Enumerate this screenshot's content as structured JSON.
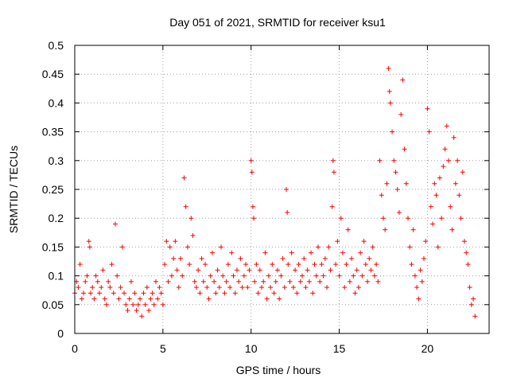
{
  "chart_data": {
    "type": "scatter",
    "title": "Day 051 of 2021, SRMTID for receiver ksu1",
    "xlabel": "GPS time / hours",
    "ylabel": "SRMTID / TECUs",
    "xlim": [
      0,
      23.5
    ],
    "ylim": [
      0,
      0.5
    ],
    "xticks": [
      0,
      5,
      10,
      15,
      20
    ],
    "xtick_labels": [
      "0",
      "5",
      "10",
      "15",
      "20"
    ],
    "yticks": [
      0,
      0.05,
      0.1,
      0.15,
      0.2,
      0.25,
      0.3,
      0.35,
      0.4,
      0.45,
      0.5
    ],
    "ytick_labels": [
      "0",
      "0.05",
      "0.1",
      "0.15",
      "0.2",
      "0.25",
      "0.3",
      "0.35",
      "0.4",
      "0.45",
      "0.5"
    ],
    "grid": true,
    "marker": "+",
    "series": [
      {
        "name": "SRMTID",
        "color": "#ff0000",
        "x": [
          0.0,
          0.1,
          0.2,
          0.3,
          0.4,
          0.5,
          0.6,
          0.7,
          0.8,
          0.85,
          0.9,
          1.0,
          1.1,
          1.2,
          1.3,
          1.4,
          1.5,
          1.6,
          1.7,
          1.8,
          1.9,
          2.0,
          2.1,
          2.2,
          2.3,
          2.4,
          2.5,
          2.6,
          2.7,
          2.8,
          2.9,
          3.0,
          3.1,
          3.2,
          3.3,
          3.4,
          3.5,
          3.6,
          3.7,
          3.8,
          3.9,
          4.0,
          4.1,
          4.2,
          4.3,
          4.4,
          4.5,
          4.6,
          4.7,
          4.8,
          4.9,
          5.0,
          5.1,
          5.2,
          5.3,
          5.4,
          5.5,
          5.6,
          5.7,
          5.8,
          5.9,
          6.0,
          6.1,
          6.2,
          6.3,
          6.4,
          6.5,
          6.6,
          6.7,
          6.8,
          6.9,
          7.0,
          7.1,
          7.2,
          7.3,
          7.4,
          7.5,
          7.6,
          7.7,
          7.8,
          7.9,
          8.0,
          8.1,
          8.2,
          8.3,
          8.4,
          8.5,
          8.6,
          8.7,
          8.8,
          8.9,
          9.0,
          9.1,
          9.2,
          9.3,
          9.4,
          9.5,
          9.6,
          9.7,
          9.8,
          9.9,
          10.0,
          10.05,
          10.1,
          10.15,
          10.2,
          10.3,
          10.4,
          10.5,
          10.6,
          10.7,
          10.8,
          10.9,
          11.0,
          11.1,
          11.2,
          11.3,
          11.4,
          11.5,
          11.6,
          11.7,
          11.8,
          11.9,
          12.0,
          12.05,
          12.1,
          12.2,
          12.3,
          12.4,
          12.5,
          12.6,
          12.7,
          12.8,
          12.9,
          13.0,
          13.1,
          13.2,
          13.3,
          13.4,
          13.5,
          13.6,
          13.7,
          13.8,
          13.9,
          14.0,
          14.1,
          14.2,
          14.3,
          14.4,
          14.5,
          14.6,
          14.65,
          14.7,
          14.8,
          14.9,
          15.0,
          15.1,
          15.2,
          15.3,
          15.4,
          15.5,
          15.6,
          15.7,
          15.8,
          15.9,
          16.0,
          16.1,
          16.2,
          16.3,
          16.4,
          16.5,
          16.6,
          16.7,
          16.8,
          16.9,
          17.0,
          17.1,
          17.2,
          17.3,
          17.4,
          17.5,
          17.6,
          17.7,
          17.8,
          17.85,
          17.9,
          18.0,
          18.1,
          18.2,
          18.3,
          18.4,
          18.5,
          18.6,
          18.7,
          18.8,
          18.9,
          19.0,
          19.1,
          19.2,
          19.3,
          19.4,
          19.5,
          19.6,
          19.7,
          19.8,
          19.9,
          20.0,
          20.1,
          20.2,
          20.3,
          20.4,
          20.5,
          20.6,
          20.7,
          20.8,
          20.9,
          21.0,
          21.1,
          21.2,
          21.3,
          21.4,
          21.5,
          21.6,
          21.7,
          21.8,
          21.9,
          22.0,
          22.1,
          22.2,
          22.3,
          22.4,
          22.5,
          22.6,
          22.7
        ],
        "y": [
          0.07,
          0.09,
          0.08,
          0.12,
          0.06,
          0.07,
          0.09,
          0.1,
          0.16,
          0.15,
          0.07,
          0.08,
          0.06,
          0.1,
          0.09,
          0.07,
          0.08,
          0.11,
          0.06,
          0.05,
          0.09,
          0.08,
          0.12,
          0.07,
          0.19,
          0.1,
          0.06,
          0.08,
          0.15,
          0.07,
          0.05,
          0.04,
          0.06,
          0.09,
          0.05,
          0.07,
          0.04,
          0.05,
          0.06,
          0.03,
          0.07,
          0.05,
          0.08,
          0.04,
          0.06,
          0.07,
          0.05,
          0.09,
          0.06,
          0.08,
          0.07,
          0.05,
          0.12,
          0.16,
          0.09,
          0.15,
          0.1,
          0.13,
          0.16,
          0.11,
          0.08,
          0.13,
          0.1,
          0.27,
          0.22,
          0.15,
          0.12,
          0.2,
          0.17,
          0.09,
          0.08,
          0.11,
          0.07,
          0.13,
          0.09,
          0.12,
          0.08,
          0.06,
          0.1,
          0.14,
          0.09,
          0.07,
          0.11,
          0.08,
          0.15,
          0.1,
          0.07,
          0.09,
          0.12,
          0.08,
          0.14,
          0.1,
          0.07,
          0.11,
          0.09,
          0.13,
          0.08,
          0.1,
          0.12,
          0.08,
          0.11,
          0.3,
          0.28,
          0.22,
          0.2,
          0.09,
          0.12,
          0.07,
          0.11,
          0.08,
          0.09,
          0.14,
          0.06,
          0.1,
          0.08,
          0.12,
          0.07,
          0.09,
          0.11,
          0.06,
          0.1,
          0.13,
          0.08,
          0.25,
          0.21,
          0.12,
          0.09,
          0.14,
          0.08,
          0.11,
          0.07,
          0.12,
          0.09,
          0.1,
          0.13,
          0.08,
          0.11,
          0.09,
          0.14,
          0.07,
          0.12,
          0.1,
          0.15,
          0.09,
          0.12,
          0.1,
          0.13,
          0.08,
          0.15,
          0.11,
          0.22,
          0.3,
          0.28,
          0.12,
          0.16,
          0.1,
          0.2,
          0.14,
          0.08,
          0.12,
          0.18,
          0.09,
          0.13,
          0.1,
          0.07,
          0.11,
          0.08,
          0.14,
          0.1,
          0.16,
          0.12,
          0.09,
          0.13,
          0.11,
          0.15,
          0.1,
          0.12,
          0.09,
          0.3,
          0.24,
          0.2,
          0.18,
          0.26,
          0.46,
          0.42,
          0.4,
          0.35,
          0.3,
          0.28,
          0.25,
          0.21,
          0.38,
          0.44,
          0.32,
          0.26,
          0.2,
          0.15,
          0.12,
          0.18,
          0.1,
          0.08,
          0.06,
          0.11,
          0.09,
          0.13,
          0.16,
          0.39,
          0.35,
          0.22,
          0.19,
          0.26,
          0.24,
          0.15,
          0.27,
          0.2,
          0.29,
          0.32,
          0.36,
          0.3,
          0.22,
          0.18,
          0.34,
          0.26,
          0.3,
          0.24,
          0.2,
          0.28,
          0.16,
          0.14,
          0.12,
          0.08,
          0.05,
          0.06,
          0.03
        ]
      }
    ]
  }
}
